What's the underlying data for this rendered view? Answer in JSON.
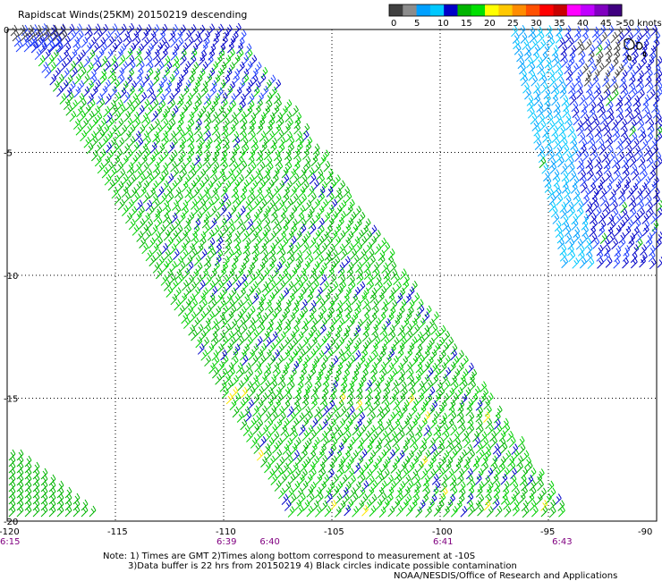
{
  "title": "Rapidscat Winds(25KM) 20150219 descending",
  "legend": {
    "unit_label": ">50 knots",
    "labels": [
      "0",
      "5",
      "10",
      "15",
      "20",
      "25",
      "30",
      "35",
      "40",
      "45"
    ],
    "colors": [
      "#404040",
      "#8c8c8c",
      "#00a0ff",
      "#00c8ff",
      "#0000c8",
      "#00b400",
      "#00e000",
      "#ffff00",
      "#ffc800",
      "#ff8c00",
      "#ff5000",
      "#ff0000",
      "#c80000",
      "#ff00ff",
      "#c000ff",
      "#8000c0",
      "#400080"
    ]
  },
  "map": {
    "lon_ticks": [
      "-120",
      "-115",
      "-110",
      "-105",
      "-100",
      "-95",
      "-90"
    ],
    "lat_ticks": [
      "0",
      "-5",
      "-10",
      "-15",
      "-20"
    ],
    "lon_values": [
      -120,
      -115,
      -110,
      -105,
      -100,
      -95,
      -90
    ],
    "lat_values": [
      0,
      -5,
      -10,
      -15,
      -20
    ],
    "lon_range": [
      -120,
      -90
    ],
    "lat_range": [
      0,
      -20
    ],
    "grid": true
  },
  "times": [
    {
      "label": "6:15",
      "lon": -120
    },
    {
      "label": "6:39",
      "lon": -110
    },
    {
      "label": "6:40",
      "lon": -108
    },
    {
      "label": "6:41",
      "lon": -100
    },
    {
      "label": "6:43",
      "lon": -94.5
    }
  ],
  "notes": {
    "line1": "Note: 1) Times are GMT 2)Times along bottom correspond to measurement at -10S",
    "line2": "3)Data buffer is 22 hrs from 20150219 4) Black circles indicate possible contamination",
    "line3": "NOAA/NESDIS/Office of Research and Applications"
  }
}
